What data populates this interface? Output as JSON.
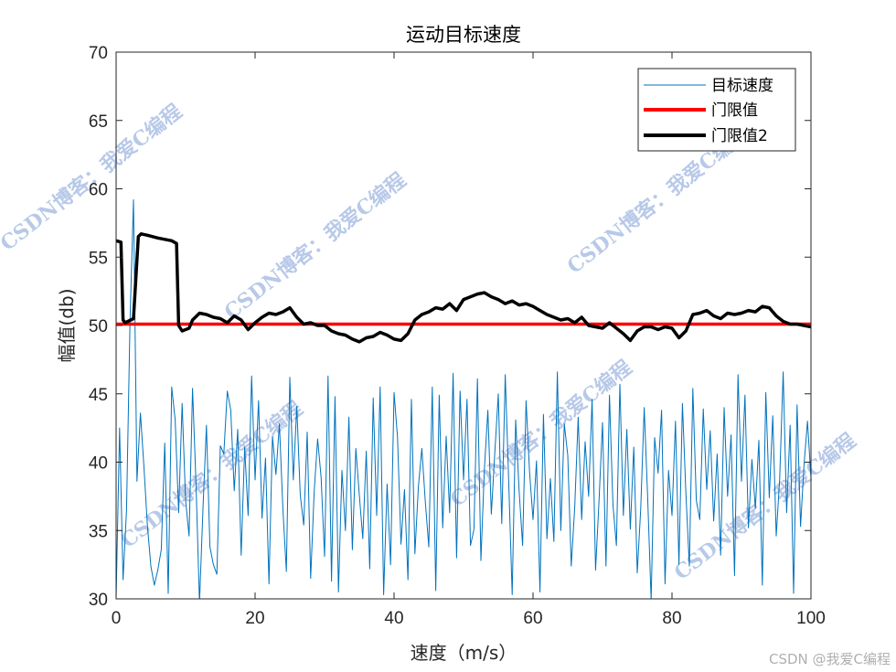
{
  "chart_data": {
    "type": "line",
    "title": "运动目标速度",
    "xlabel": "速度（m/s）",
    "ylabel": "幅值(db)",
    "xlim": [
      0,
      100
    ],
    "ylim": [
      30,
      70
    ],
    "xticks": [
      0,
      20,
      40,
      60,
      80,
      100
    ],
    "yticks": [
      30,
      35,
      40,
      45,
      50,
      55,
      60,
      65,
      70
    ],
    "grid": false,
    "legend_position": "top-right",
    "series": [
      {
        "name": "目标速度",
        "color": "#0072BD",
        "style": "thin",
        "x": [
          0,
          0.5,
          1,
          1.5,
          2,
          2.5,
          3,
          3.5,
          4,
          4.5,
          5,
          5.5,
          6,
          6.5,
          7,
          7.5,
          8,
          8.5,
          9,
          9.5,
          10,
          10.5,
          11,
          11.5,
          12,
          12.5,
          13,
          13.5,
          14,
          14.5,
          15,
          15.5,
          16,
          16.5,
          17,
          17.5,
          18,
          18.5,
          19,
          19.5,
          20,
          20.5,
          21,
          21.5,
          22,
          22.5,
          23,
          23.5,
          24,
          24.5,
          25,
          25.5,
          26,
          26.5,
          27,
          27.5,
          28,
          28.5,
          29,
          29.5,
          30,
          30.5,
          31,
          31.5,
          32,
          32.5,
          33,
          33.5,
          34,
          34.5,
          35,
          35.5,
          36,
          36.5,
          37,
          37.5,
          38,
          38.5,
          39,
          39.5,
          40,
          40.5,
          41,
          41.5,
          42,
          42.5,
          43,
          43.5,
          44,
          44.5,
          45,
          45.5,
          46,
          46.5,
          47,
          47.5,
          48,
          48.5,
          49,
          49.5,
          50,
          50.5,
          51,
          51.5,
          52,
          52.5,
          53,
          53.5,
          54,
          54.5,
          55,
          55.5,
          56,
          56.5,
          57,
          57.5,
          58,
          58.5,
          59,
          59.5,
          60,
          60.5,
          61,
          61.5,
          62,
          62.5,
          63,
          63.5,
          64,
          64.5,
          65,
          65.5,
          66,
          66.5,
          67,
          67.5,
          68,
          68.5,
          69,
          69.5,
          70,
          70.5,
          71,
          71.5,
          72,
          72.5,
          73,
          73.5,
          74,
          74.5,
          75,
          75.5,
          76,
          76.5,
          77,
          77.5,
          78,
          78.5,
          79,
          79.5,
          80,
          80.5,
          81,
          81.5,
          82,
          82.5,
          83,
          83.5,
          84,
          84.5,
          85,
          85.5,
          86,
          86.5,
          87,
          87.5,
          88,
          88.5,
          89,
          89.5,
          90,
          90.5,
          91,
          91.5,
          92,
          92.5,
          93,
          93.5,
          94,
          94.5,
          95,
          95.5,
          96,
          96.5,
          97,
          97.5,
          98,
          98.5,
          99,
          99.5,
          100
        ],
        "y": [
          30,
          42.5,
          31.4,
          36.5,
          50.3,
          59.2,
          38.6,
          43.6,
          39.7,
          35.4,
          32.4,
          31.0,
          32.1,
          33.6,
          41.4,
          30.4,
          45.5,
          43.1,
          36.3,
          44.3,
          37.2,
          34.6,
          45.4,
          38.4,
          29.7,
          36.6,
          42.7,
          33.8,
          32.5,
          31.8,
          41.2,
          40.6,
          45.2,
          43.8,
          37.9,
          42.4,
          33.2,
          41.1,
          36.1,
          46.3,
          38.7,
          44.5,
          35.9,
          40.3,
          31.1,
          41.9,
          39.1,
          42.8,
          36.6,
          32.0,
          46.2,
          38.7,
          44.1,
          37.6,
          35.4,
          42.2,
          31.5,
          37.8,
          41.7,
          38.9,
          33.1,
          46.3,
          31.3,
          44.8,
          30.5,
          39.4,
          35.0,
          43.3,
          33.6,
          41.0,
          37.6,
          34.4,
          40.8,
          32.2,
          44.7,
          36.1,
          45.5,
          30.3,
          38.4,
          32.5,
          45.1,
          41.8,
          34.0,
          38.0,
          31.4,
          44.6,
          33.3,
          38.2,
          41.0,
          37.1,
          33.8,
          45.5,
          30.6,
          44.9,
          35.2,
          41.9,
          36.3,
          46.5,
          33.0,
          45.2,
          38.7,
          44.6,
          33.9,
          35.1,
          46.1,
          32.8,
          39.5,
          43.8,
          36.2,
          40.7,
          45.0,
          35.5,
          46.4,
          38.6,
          30.3,
          43.1,
          37.9,
          33.9,
          44.5,
          39.3,
          35.8,
          40.1,
          30.5,
          43.5,
          34.4,
          38.8,
          34.2,
          46.6,
          35.0,
          42.8,
          40.5,
          32.4,
          36.7,
          43.3,
          35.8,
          41.5,
          37.5,
          44.6,
          32.1,
          37.2,
          42.9,
          32.4,
          44.9,
          36.9,
          33.9,
          45.7,
          36.1,
          42.4,
          35.1,
          41.1,
          31.9,
          36.6,
          44.0,
          37.4,
          29.9,
          41.8,
          39.2,
          43.8,
          31.1,
          39.4,
          36.1,
          43.0,
          32.5,
          44.3,
          37.7,
          32.4,
          45.4,
          37.2,
          35.8,
          43.9,
          38.0,
          42.3,
          35.7,
          40.6,
          33.2,
          44.0,
          37.5,
          42.0,
          31.7,
          46.4,
          38.6,
          44.9,
          35.2,
          40.2,
          36.6,
          41.6,
          31.0,
          45.1,
          37.4,
          43.4,
          34.6,
          38.8,
          46.6,
          36.3,
          42.7,
          30.4,
          44.2,
          35.3,
          39.8,
          43.0,
          38.8
        ]
      },
      {
        "name": "门限值",
        "color": "#FF0000",
        "style": "thick",
        "x": [
          0,
          100
        ],
        "y": [
          50.1,
          50.1
        ]
      },
      {
        "name": "门限值2",
        "color": "#000000",
        "style": "thick",
        "x": [
          0,
          0.7,
          1.0,
          1.3,
          2.5,
          3.2,
          3.6,
          4.5,
          6,
          7,
          8,
          8.7,
          9.0,
          9.5,
          10.5,
          11,
          12,
          13,
          14,
          15,
          16,
          17,
          18,
          19,
          20,
          21,
          22,
          23,
          24,
          25,
          26,
          27,
          28,
          29,
          30,
          31,
          32,
          33,
          34,
          35,
          36,
          37,
          38,
          39,
          40,
          41,
          42,
          43,
          44,
          45,
          46,
          47,
          48,
          49,
          50,
          51,
          52,
          53,
          54,
          55,
          56,
          57,
          58,
          59,
          60,
          61,
          62,
          63,
          64,
          65,
          66,
          67,
          68,
          69,
          70,
          71,
          72,
          73,
          74,
          75,
          76,
          77,
          78,
          79,
          80,
          81,
          82,
          83,
          84,
          85,
          86,
          87,
          88,
          89,
          90,
          91,
          92,
          93,
          94,
          95,
          96,
          97,
          98,
          99,
          100
        ],
        "y": [
          56.2,
          56.1,
          50.4,
          50.2,
          50.5,
          56.5,
          56.7,
          56.6,
          56.4,
          56.3,
          56.2,
          56.0,
          50.0,
          49.6,
          49.8,
          50.4,
          50.9,
          50.8,
          50.6,
          50.5,
          50.2,
          50.7,
          50.4,
          49.7,
          50.2,
          50.6,
          50.9,
          50.8,
          51.0,
          51.3,
          50.6,
          50.1,
          50.2,
          50.0,
          50.0,
          49.6,
          49.4,
          49.3,
          49.0,
          48.8,
          49.1,
          49.2,
          49.5,
          49.3,
          49.0,
          48.9,
          49.4,
          50.4,
          50.8,
          51.0,
          51.3,
          51.2,
          51.6,
          51.1,
          51.9,
          52.1,
          52.3,
          52.4,
          52.1,
          51.9,
          51.6,
          51.8,
          51.5,
          51.6,
          51.4,
          51.1,
          50.8,
          50.6,
          50.4,
          50.5,
          50.2,
          50.6,
          50.0,
          49.9,
          49.8,
          50.2,
          49.8,
          49.4,
          48.9,
          49.6,
          49.9,
          49.9,
          49.7,
          49.9,
          49.8,
          49.1,
          49.6,
          50.8,
          50.9,
          51.1,
          50.7,
          50.5,
          50.9,
          50.8,
          50.9,
          51.1,
          51.0,
          51.4,
          51.3,
          50.7,
          50.3,
          50.1,
          50.1,
          50.0,
          49.9
        ]
      }
    ]
  },
  "watermark": {
    "text": "CSDN博客：我爱C编程"
  },
  "credit": "CSDN @我爱C编程"
}
